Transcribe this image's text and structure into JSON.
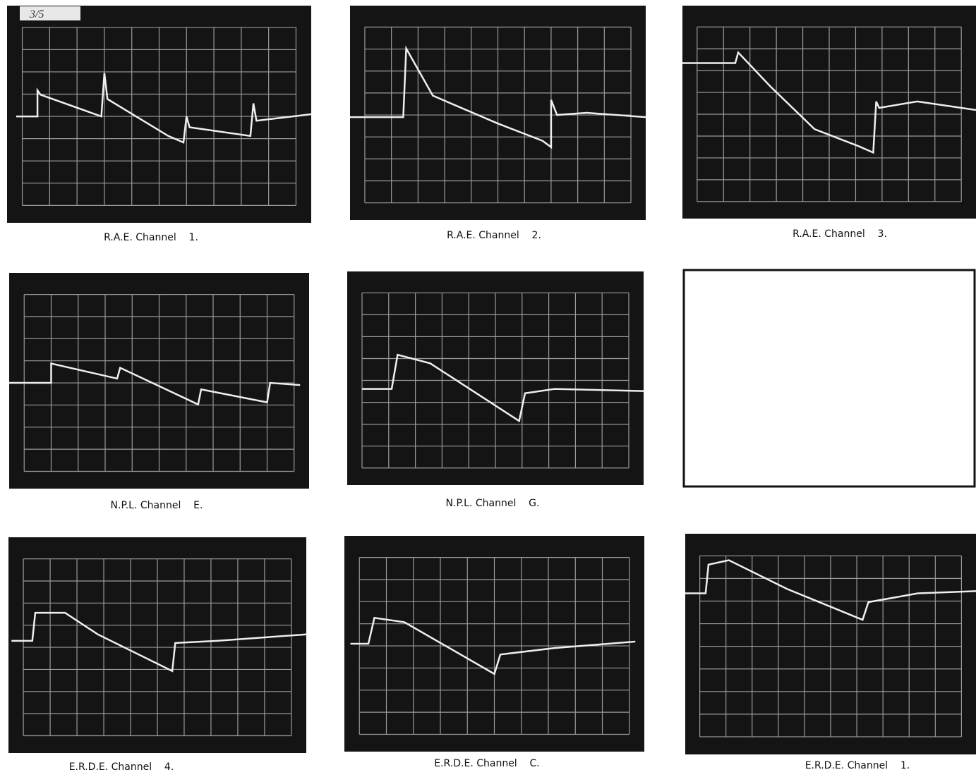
{
  "note_label": "3/5",
  "captions": [
    "R.A.E. Channel    1.",
    "R.A.E. Channel    2.",
    "R.A.E. Channel    3.",
    "N.P.L. Channel    E.",
    "N.P.L. Channel    G.",
    "E.R.D.E. Channel    4.",
    "E.R.D.E. Channel    C.",
    "E.R.D.E. Channel    1."
  ]
}
